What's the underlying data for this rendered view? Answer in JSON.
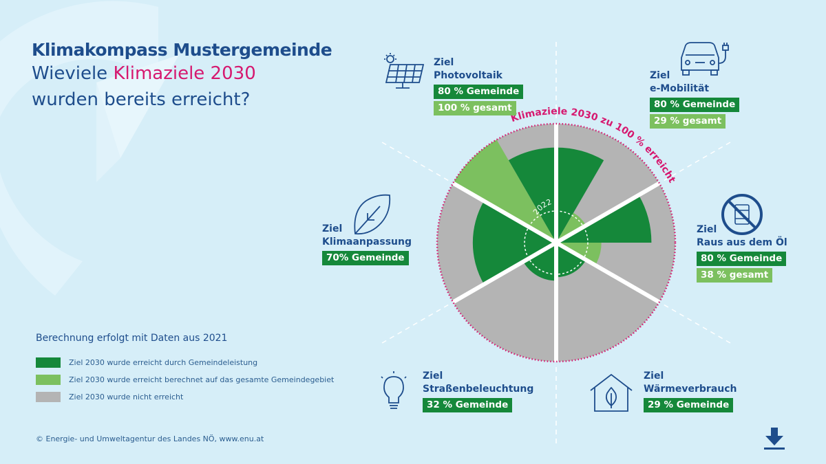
{
  "header": {
    "title": "Klimakompass Mustergemeinde",
    "subtitle_pre": "Wieviele ",
    "subtitle_accent": "Klimaziele 2030",
    "subtitle_line2": "wurden bereits erreicht?"
  },
  "goals": {
    "photovoltaik": {
      "ziel": "Ziel",
      "name": "Photovoltaik",
      "badge1": "80 % Gemeinde",
      "badge2": "100 % gesamt"
    },
    "emobilitaet": {
      "ziel": "Ziel",
      "name": "e-Mobilität",
      "badge1": "80 % Gemeinde",
      "badge2": "29 % gesamt"
    },
    "oel": {
      "ziel": "Ziel",
      "name": "Raus aus dem Öl",
      "badge1": "80 % Gemeinde",
      "badge2": "38 % gesamt"
    },
    "waerme": {
      "ziel": "Ziel",
      "name": "Wärmeverbrauch",
      "badge1": "29 % Gemeinde"
    },
    "strasse": {
      "ziel": "Ziel",
      "name": "Straßenbeleuchtung",
      "badge1": "32 % Gemeinde"
    },
    "klima": {
      "ziel": "Ziel",
      "name": "Klimaanpassung",
      "badge1": "70% Gemeinde"
    }
  },
  "legend": {
    "title": "Berechnung erfolgt mit Daten aus 2021",
    "items": [
      {
        "label": "Ziel 2030 wurde erreicht durch Gemeindeleistung",
        "color": "#15883a"
      },
      {
        "label": "Ziel 2030 wurde erreicht berechnet auf das gesamte Gemeindegebiet",
        "color": "#7cc05f"
      },
      {
        "label": "Ziel 2030 wurde nicht erreicht",
        "color": "#b4b4b4"
      }
    ]
  },
  "footer": "© Energie- und Umweltagentur des Landes NÖ, www.enu.at",
  "colors": {
    "dark": "#15883a",
    "light": "#7cc05f",
    "grey": "#b4b4b4",
    "accent": "#d6186f",
    "text": "#1e4d8c",
    "bg": "#d6eef8"
  },
  "chart_data": {
    "type": "polar-area",
    "title": "Klimaziele 2030 zu 100 % erreicht",
    "center_label": "2022",
    "rmax": 100,
    "series": [
      {
        "name": "Ziel 2030 wurde erreicht durch Gemeindeleistung",
        "values": [
          80,
          80,
          29,
          32,
          70,
          80
        ]
      },
      {
        "name": "Ziel 2030 wurde erreicht berechnet auf das gesamte Gemeindegebiet",
        "values": [
          29,
          38,
          0,
          0,
          0,
          100
        ]
      }
    ],
    "categories": [
      "e-Mobilität",
      "Raus aus dem Öl",
      "Wärmeverbrauch",
      "Straßenbeleuchtung",
      "Klimaanpassung",
      "Photovoltaik"
    ]
  }
}
